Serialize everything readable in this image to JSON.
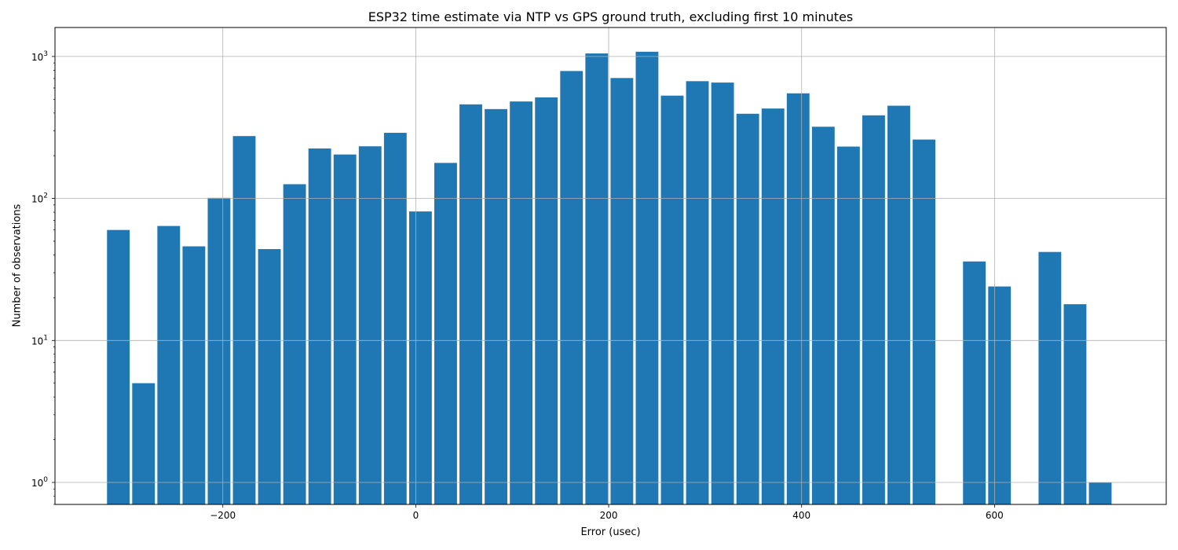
{
  "chart_data": {
    "type": "bar",
    "title": "ESP32 time estimate via NTP vs GPS ground truth, excluding first 10 minutes",
    "xlabel": "Error (usec)",
    "ylabel": "Number of observations",
    "x_scale": "linear",
    "y_scale": "log",
    "xlim": [
      -374,
      778
    ],
    "ylim": [
      0.7,
      1600
    ],
    "xticks": [
      -200,
      0,
      200,
      400,
      600
    ],
    "xtick_labels": [
      "−200",
      "0",
      "200",
      "400",
      "600"
    ],
    "yticks": [
      1,
      10,
      100,
      1000
    ],
    "ytick_labels": [
      {
        "base": "10",
        "exp": "0"
      },
      {
        "base": "10",
        "exp": "1"
      },
      {
        "base": "10",
        "exp": "2"
      },
      {
        "base": "10",
        "exp": "3"
      }
    ],
    "grid": true,
    "bar_color": "#1f77b4",
    "bin_width": 26.1,
    "bar_width": 23.5,
    "bars": [
      {
        "x": -308.3,
        "value": 60
      },
      {
        "x": -282.2,
        "value": 5
      },
      {
        "x": -256.1,
        "value": 64
      },
      {
        "x": -230.0,
        "value": 46
      },
      {
        "x": -203.9,
        "value": 101
      },
      {
        "x": -177.8,
        "value": 275
      },
      {
        "x": -151.7,
        "value": 44
      },
      {
        "x": -125.6,
        "value": 126
      },
      {
        "x": -99.5,
        "value": 225
      },
      {
        "x": -73.4,
        "value": 204
      },
      {
        "x": -47.3,
        "value": 233
      },
      {
        "x": -21.2,
        "value": 290
      },
      {
        "x": 4.9,
        "value": 81
      },
      {
        "x": 31.0,
        "value": 178
      },
      {
        "x": 57.1,
        "value": 460
      },
      {
        "x": 83.2,
        "value": 426
      },
      {
        "x": 109.3,
        "value": 482
      },
      {
        "x": 135.4,
        "value": 515
      },
      {
        "x": 161.5,
        "value": 790
      },
      {
        "x": 187.6,
        "value": 1050
      },
      {
        "x": 213.7,
        "value": 705
      },
      {
        "x": 239.8,
        "value": 1080
      },
      {
        "x": 265.9,
        "value": 530
      },
      {
        "x": 292.0,
        "value": 670
      },
      {
        "x": 318.1,
        "value": 655
      },
      {
        "x": 344.2,
        "value": 395
      },
      {
        "x": 370.3,
        "value": 430
      },
      {
        "x": 396.4,
        "value": 550
      },
      {
        "x": 422.5,
        "value": 320
      },
      {
        "x": 448.6,
        "value": 232
      },
      {
        "x": 474.7,
        "value": 385
      },
      {
        "x": 500.8,
        "value": 450
      },
      {
        "x": 526.9,
        "value": 260
      },
      {
        "x": 579.1,
        "value": 36
      },
      {
        "x": 605.2,
        "value": 24
      },
      {
        "x": 657.4,
        "value": 42
      },
      {
        "x": 683.5,
        "value": 18
      },
      {
        "x": 709.6,
        "value": 1
      }
    ]
  }
}
